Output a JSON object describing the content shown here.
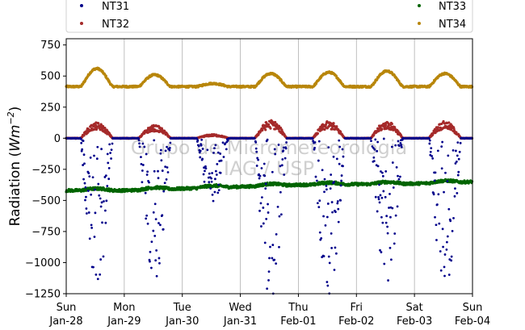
{
  "chart_data": {
    "type": "scatter",
    "title": "",
    "xlabel": "",
    "ylabel": "Radiation (W m⁻²)",
    "ylabel_parts": {
      "prefix": "Radiation (",
      "var": "Wm",
      "sup": "−2",
      "suffix": ")"
    },
    "watermark": [
      "Grupo de Micrometeorologia",
      "IAG / USP"
    ],
    "xlim": [
      0,
      7
    ],
    "ylim": [
      -1250,
      800
    ],
    "yticks": [
      -1250,
      -1000,
      -750,
      -500,
      -250,
      0,
      250,
      500,
      750
    ],
    "ytick_labels": [
      "−1250",
      "−1000",
      "−750",
      "−500",
      "−250",
      "0",
      "250",
      "500",
      "750"
    ],
    "xticks": [
      {
        "pos": 0,
        "day": "Sun",
        "date": "Jan-28"
      },
      {
        "pos": 1,
        "day": "Mon",
        "date": "Jan-29"
      },
      {
        "pos": 2,
        "day": "Tue",
        "date": "Jan-30"
      },
      {
        "pos": 3,
        "day": "Wed",
        "date": "Jan-31"
      },
      {
        "pos": 4,
        "day": "Thu",
        "date": "Feb-01"
      },
      {
        "pos": 5,
        "day": "Fri",
        "date": "Feb-02"
      },
      {
        "pos": 6,
        "day": "Sat",
        "date": "Feb-03"
      },
      {
        "pos": 7,
        "day": "Sun",
        "date": "Feb-04"
      }
    ],
    "grid": "vertical",
    "legend_placement": "top",
    "series": [
      {
        "name": "NT31",
        "color": "#00008b",
        "daily_min_estimate": [
          -1150,
          -1080,
          -500,
          -1240,
          -1230,
          -1150,
          -1200
        ]
      },
      {
        "name": "NT32",
        "color": "#a52a2a",
        "daily_max_estimate": [
          120,
          100,
          30,
          140,
          130,
          130,
          130
        ]
      },
      {
        "name": "NT33",
        "color": "#006400",
        "baseline_estimate": [
          -420,
          -420,
          -405,
          -390,
          -375,
          -370,
          -365,
          -350
        ]
      },
      {
        "name": "NT34",
        "color": "#b8860b",
        "daily_max_estimate": [
          560,
          510,
          440,
          520,
          530,
          540,
          520
        ]
      }
    ]
  }
}
